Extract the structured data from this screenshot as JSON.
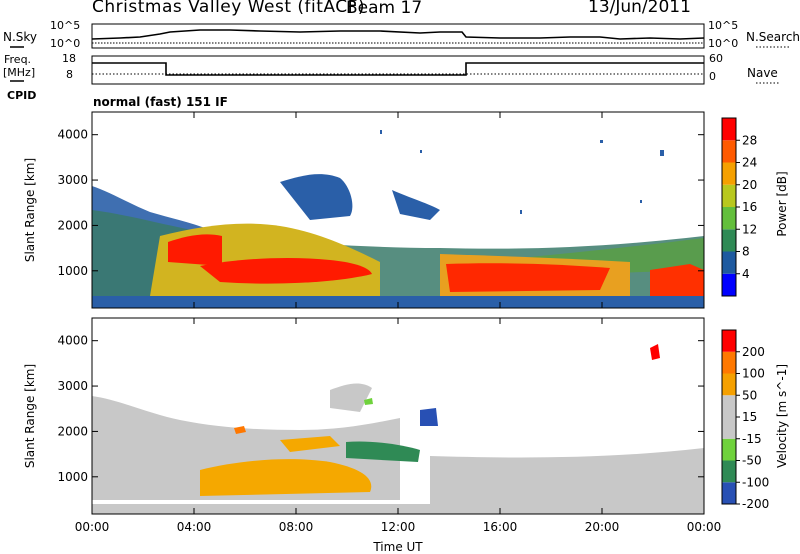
{
  "header": {
    "title": "Christmas Valley West (fitACF)",
    "beam": "Beam 17",
    "date": "13/Jun/2011"
  },
  "nsky_panel": {
    "left_label": "N.Sky",
    "left_ticks": [
      "10^5",
      "10^0"
    ],
    "right_label": "N.Search",
    "right_ticks": [
      "10^5",
      "10^0"
    ]
  },
  "freq_panel": {
    "left_label_line1": "Freq.",
    "left_label_line2": "[MHz]",
    "left_ticks": [
      "18",
      "8"
    ],
    "right_label": "Nave",
    "right_ticks": [
      "60",
      "0"
    ]
  },
  "cpid": {
    "label": "CPID",
    "value": "normal (fast) 151 IF"
  },
  "chart_data": [
    {
      "type": "heatmap",
      "name": "power-panel",
      "xlabel": "",
      "ylabel": "Slant Range [km]",
      "xlim": [
        0,
        24
      ],
      "ylim": [
        180,
        4500
      ],
      "yticks": [
        "1000",
        "2000",
        "3000",
        "4000"
      ],
      "colorbar": {
        "label": "Power [dB]",
        "ticks": [
          "28",
          "24",
          "20",
          "16",
          "12",
          "8",
          "4"
        ],
        "colors": [
          "#0000ff",
          "#1e5aa0",
          "#2f8a55",
          "#63bf3c",
          "#b8c81e",
          "#f5a000",
          "#ff5a00",
          "#ff0000"
        ]
      }
    },
    {
      "type": "heatmap",
      "name": "velocity-panel",
      "xlabel": "Time UT",
      "ylabel": "Slant Range [km]",
      "xlim": [
        0,
        24
      ],
      "ylim": [
        180,
        4500
      ],
      "xticks": [
        "00:00",
        "04:00",
        "08:00",
        "12:00",
        "16:00",
        "20:00",
        "00:00"
      ],
      "yticks": [
        "1000",
        "2000",
        "3000",
        "4000"
      ],
      "colorbar": {
        "label": "Velocity [m s^-1]",
        "ticks": [
          "200",
          "100",
          "50",
          "15",
          "-15",
          "-50",
          "-100",
          "-200"
        ],
        "colors": [
          "#2850b4",
          "#2f8a55",
          "#6fd23c",
          "#c8c8c8",
          "#c8c8c8",
          "#f5a000",
          "#ff7800",
          "#ff0000"
        ]
      }
    }
  ]
}
